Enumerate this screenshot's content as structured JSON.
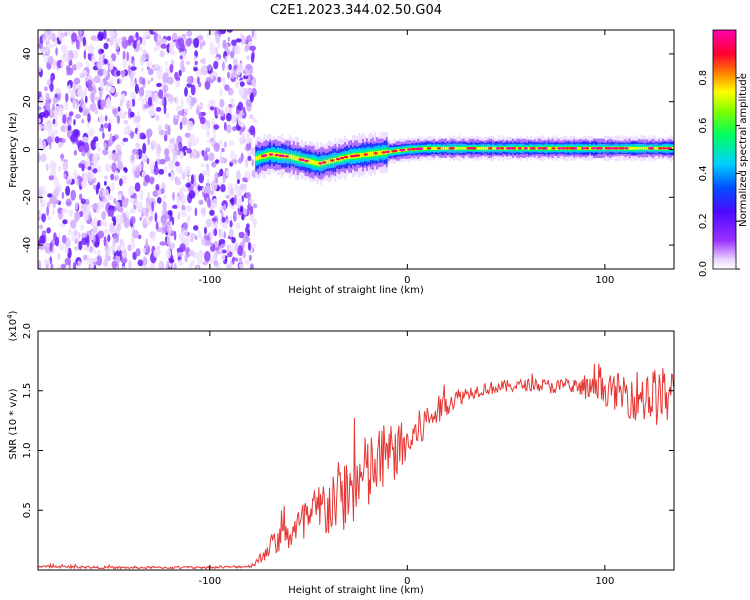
{
  "chart_data": [
    {
      "type": "heatmap",
      "title": "C2E1.2023.344.02.50.G04",
      "xlabel": "Height of straight line (km)",
      "ylabel": "Frequency (Hz)",
      "xlim": [
        -187,
        135
      ],
      "ylim": [
        -50,
        50
      ],
      "x_ticks": [
        -100,
        0,
        100
      ],
      "y_ticks": [
        -40,
        -20,
        0,
        20,
        40
      ],
      "colorbar": {
        "label": "Normalized spectral amplitude",
        "range": [
          0,
          1
        ],
        "ticks": [
          "0.0",
          "0.2",
          "0.4",
          "0.6",
          "0.8"
        ],
        "colormap": "rainbow (white-purple-blue-cyan-green-yellow-red-magenta)"
      },
      "regions": [
        {
          "x_range": [
            -187,
            -77
          ],
          "freq_range": [
            -50,
            50
          ],
          "amplitude": "low (0.0-0.2), broadband noise"
        },
        {
          "x_range": [
            -77,
            135
          ],
          "freq_center": 0,
          "amplitude": "high (0.4-0.9), narrow line near 0 Hz"
        }
      ],
      "ridge": {
        "x": [
          -82,
          -70,
          -60,
          -50,
          -45,
          -40,
          -30,
          -20,
          -10,
          0,
          10,
          20,
          40,
          60,
          80,
          100,
          120,
          135
        ],
        "freq": [
          -5,
          -2,
          -3,
          -5,
          -6,
          -5,
          -3,
          -2,
          -1,
          0,
          0.5,
          0.5,
          0.5,
          0.5,
          0.5,
          0.5,
          0.5,
          0.5
        ]
      }
    },
    {
      "type": "line",
      "xlabel": "Height of straight line (km)",
      "ylabel": "SNR (10 * v/v)",
      "y_multiplier": "(x10^4)",
      "xlim": [
        -187,
        135
      ],
      "ylim": [
        0,
        2.0
      ],
      "x_ticks": [
        -100,
        0,
        100
      ],
      "y_ticks": [
        "0.5",
        "1.0",
        "1.5",
        "2.0"
      ],
      "series_color": "#e53935",
      "envelope": {
        "x": [
          -187,
          -150,
          -100,
          -80,
          -75,
          -70,
          -60,
          -50,
          -40,
          -30,
          -20,
          -10,
          0,
          10,
          20,
          30,
          40,
          60,
          80,
          100,
          110,
          120,
          135
        ],
        "y": [
          0.03,
          0.02,
          0.02,
          0.03,
          0.08,
          0.2,
          0.3,
          0.4,
          0.55,
          0.65,
          0.8,
          0.95,
          1.05,
          1.25,
          1.4,
          1.48,
          1.52,
          1.55,
          1.53,
          1.5,
          1.48,
          1.45,
          1.45
        ]
      },
      "noise_amplitude": {
        "x": [
          -187,
          -80,
          -75,
          -60,
          -40,
          -20,
          0,
          10,
          30,
          60,
          80,
          100,
          120,
          135
        ],
        "y": [
          0.01,
          0.01,
          0.05,
          0.15,
          0.3,
          0.35,
          0.2,
          0.15,
          0.06,
          0.05,
          0.07,
          0.12,
          0.25,
          0.25
        ]
      }
    }
  ]
}
